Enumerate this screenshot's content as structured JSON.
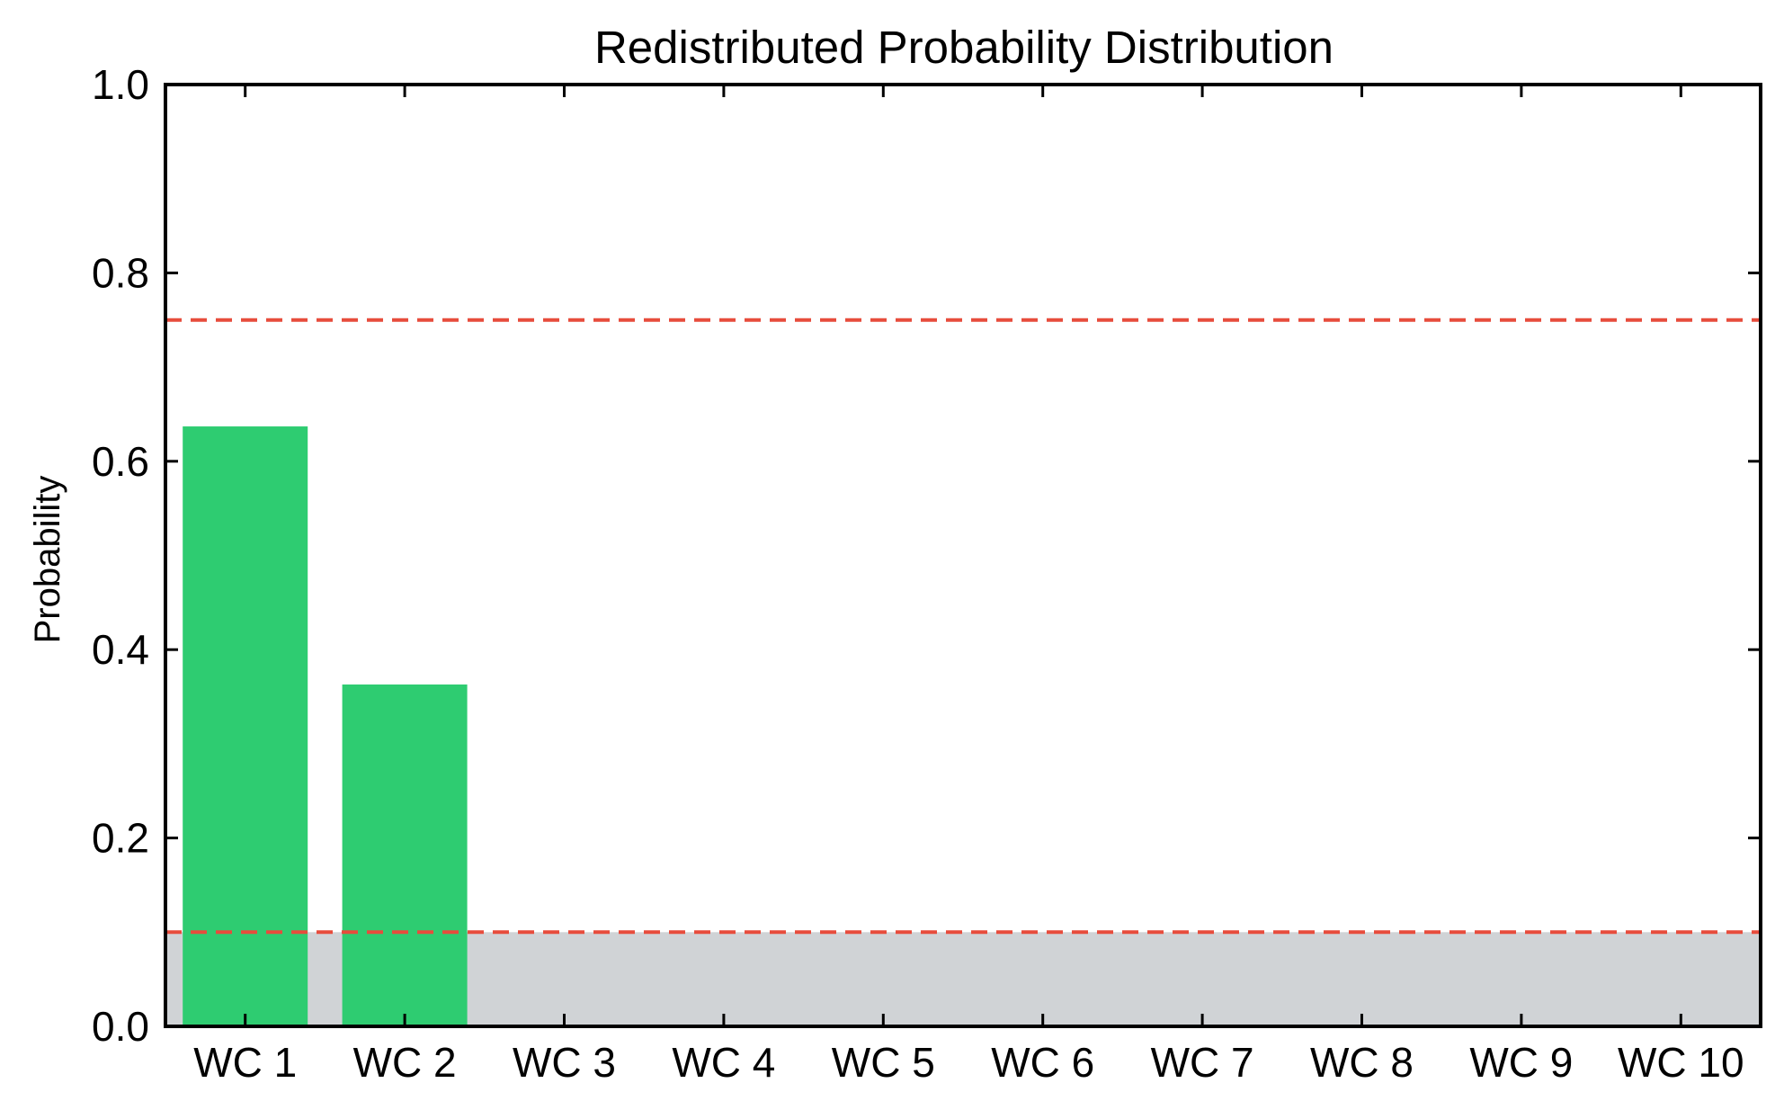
{
  "chart_data": {
    "type": "bar",
    "title": "Redistributed Probability Distribution",
    "xlabel": "",
    "ylabel": "Probability",
    "categories": [
      "WC 1",
      "WC 2",
      "WC 3",
      "WC 4",
      "WC 5",
      "WC 6",
      "WC 7",
      "WC 8",
      "WC 9",
      "WC 10"
    ],
    "values": [
      0.637,
      0.363,
      0,
      0,
      0,
      0,
      0,
      0,
      0,
      0
    ],
    "ylim": [
      0,
      1.0
    ],
    "yticks": [
      "0.0",
      "0.2",
      "0.4",
      "0.6",
      "0.8",
      "1.0"
    ],
    "grid": false,
    "reference_lines": [
      0.75,
      0.1
    ],
    "shaded_band": [
      0,
      0.1
    ],
    "colors": {
      "bar": "#2ecc71",
      "reference_line": "#e74c3c",
      "shaded_band": "#d0d3d6",
      "axis": "#000000"
    }
  }
}
